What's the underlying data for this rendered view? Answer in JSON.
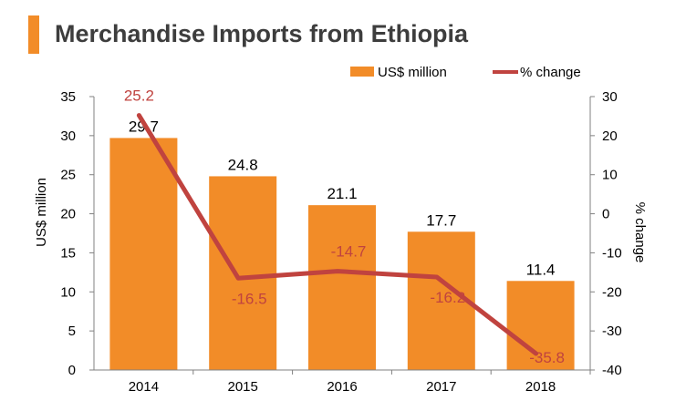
{
  "title": "Merchandise Imports from Ethiopia",
  "colors": {
    "accent": "#f28c28",
    "bar": "#f28c28",
    "line": "#c0433f",
    "line_label": "#c0433f",
    "axis": "#808080",
    "text": "#000000"
  },
  "chart_data": {
    "type": "bar",
    "categories": [
      "2014",
      "2015",
      "2016",
      "2017",
      "2018"
    ],
    "series": [
      {
        "name": "US$ million",
        "type": "bar",
        "axis": "left",
        "values": [
          29.7,
          24.8,
          21.1,
          17.7,
          11.4
        ],
        "labels": [
          "29.7",
          "24.8",
          "21.1",
          "17.7",
          "11.4"
        ]
      },
      {
        "name": "% change",
        "type": "line",
        "axis": "right",
        "values": [
          25.2,
          -16.5,
          -14.7,
          -16.2,
          -35.8
        ],
        "labels": [
          "25.2",
          "-16.5",
          "-14.7",
          "-16.2",
          "-35.8"
        ]
      }
    ],
    "y_left": {
      "label": "US$ million",
      "min": 0,
      "max": 35,
      "ticks": [
        "0",
        "5",
        "10",
        "15",
        "20",
        "25",
        "30",
        "35"
      ]
    },
    "y_right": {
      "label": "% change",
      "min": -40,
      "max": 30,
      "ticks": [
        "-40",
        "-30",
        "-20",
        "-10",
        "0",
        "10",
        "20",
        "30"
      ]
    },
    "grid": false,
    "legend_position": "top-right"
  }
}
